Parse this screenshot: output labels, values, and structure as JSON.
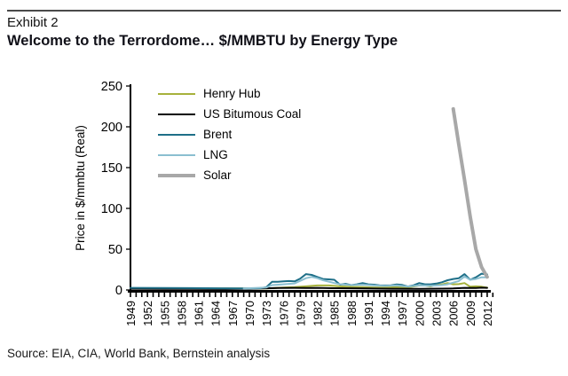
{
  "header": {
    "exhibit_label": "Exhibit 2",
    "title": "Welcome to the Terrordome… $/MMBTU by Energy Type"
  },
  "source_note": "Source: EIA, CIA, World Bank, Bernstein analysis",
  "colors": {
    "henry_hub": "#a7b23c",
    "us_bitumous_coal": "#000000",
    "brent": "#1e6f88",
    "lng": "#8bbfd0",
    "solar": "#a8a8a8",
    "axis": "#000000",
    "rule": "#4a4a4a"
  },
  "chart_data": {
    "type": "line",
    "title": "",
    "xlabel": "",
    "ylabel": "Price in $/mmbtu (Real)",
    "ylim": [
      0,
      250
    ],
    "yticks": [
      0,
      50,
      100,
      150,
      200,
      250
    ],
    "xlim": [
      1949,
      2013
    ],
    "xtick_labels": [
      "1949",
      "1952",
      "1955",
      "1958",
      "1961",
      "1964",
      "1967",
      "1970",
      "1973",
      "1976",
      "1979",
      "1982",
      "1985",
      "1988",
      "1991",
      "1994",
      "1997",
      "2000",
      "2003",
      "2006",
      "2009",
      "2012"
    ],
    "minor_xtick_every_years": 1,
    "grid": false,
    "legend_position": "top-left-inside",
    "legend_order": [
      "Henry Hub",
      "US Bitumous Coal",
      "Brent",
      "LNG",
      "Solar"
    ],
    "series": [
      {
        "name": "Henry Hub",
        "color": "#a7b23c",
        "width": 2,
        "points": [
          [
            1949,
            1.8
          ],
          [
            1955,
            1.9
          ],
          [
            1960,
            1.9
          ],
          [
            1965,
            1.8
          ],
          [
            1970,
            1.8
          ],
          [
            1973,
            2.0
          ],
          [
            1974,
            2.2
          ],
          [
            1976,
            3.0
          ],
          [
            1978,
            3.5
          ],
          [
            1980,
            4.5
          ],
          [
            1982,
            5.5
          ],
          [
            1984,
            5.5
          ],
          [
            1986,
            4.5
          ],
          [
            1988,
            3.8
          ],
          [
            1990,
            3.5
          ],
          [
            1992,
            3.0
          ],
          [
            1994,
            2.8
          ],
          [
            1996,
            3.5
          ],
          [
            1998,
            3.0
          ],
          [
            2000,
            5.5
          ],
          [
            2001,
            5.5
          ],
          [
            2002,
            4.5
          ],
          [
            2003,
            6.5
          ],
          [
            2004,
            6.8
          ],
          [
            2005,
            8.5
          ],
          [
            2006,
            7.0
          ],
          [
            2007,
            7.2
          ],
          [
            2008,
            8.5
          ],
          [
            2009,
            4.0
          ],
          [
            2010,
            4.5
          ],
          [
            2011,
            4.0
          ],
          [
            2012,
            2.8
          ]
        ]
      },
      {
        "name": "US Bitumous Coal",
        "color": "#000000",
        "width": 2,
        "points": [
          [
            1949,
            1.5
          ],
          [
            1955,
            1.4
          ],
          [
            1960,
            1.3
          ],
          [
            1965,
            1.2
          ],
          [
            1970,
            1.5
          ],
          [
            1975,
            2.5
          ],
          [
            1978,
            2.6
          ],
          [
            1980,
            2.5
          ],
          [
            1982,
            2.6
          ],
          [
            1985,
            2.2
          ],
          [
            1990,
            1.8
          ],
          [
            1995,
            1.5
          ],
          [
            2000,
            1.4
          ],
          [
            2004,
            1.6
          ],
          [
            2006,
            1.8
          ],
          [
            2008,
            2.6
          ],
          [
            2010,
            2.5
          ],
          [
            2011,
            2.8
          ],
          [
            2012,
            2.6
          ]
        ]
      },
      {
        "name": "Brent",
        "color": "#1e6f88",
        "width": 2,
        "points": [
          [
            1949,
            2.6
          ],
          [
            1955,
            2.4
          ],
          [
            1960,
            2.3
          ],
          [
            1965,
            2.1
          ],
          [
            1970,
            2.0
          ],
          [
            1972,
            2.2
          ],
          [
            1973,
            3.5
          ],
          [
            1974,
            10.0
          ],
          [
            1975,
            10.0
          ],
          [
            1976,
            10.5
          ],
          [
            1977,
            11.0
          ],
          [
            1978,
            10.5
          ],
          [
            1979,
            14.0
          ],
          [
            1980,
            19.5
          ],
          [
            1981,
            18.5
          ],
          [
            1982,
            16.0
          ],
          [
            1983,
            13.5
          ],
          [
            1984,
            13.0
          ],
          [
            1985,
            12.5
          ],
          [
            1986,
            6.5
          ],
          [
            1987,
            7.5
          ],
          [
            1988,
            6.0
          ],
          [
            1989,
            7.0
          ],
          [
            1990,
            8.5
          ],
          [
            1991,
            7.0
          ],
          [
            1992,
            6.5
          ],
          [
            1993,
            5.8
          ],
          [
            1994,
            5.5
          ],
          [
            1995,
            5.8
          ],
          [
            1996,
            6.8
          ],
          [
            1997,
            6.2
          ],
          [
            1998,
            4.2
          ],
          [
            1999,
            5.8
          ],
          [
            2000,
            8.5
          ],
          [
            2001,
            7.0
          ],
          [
            2002,
            7.0
          ],
          [
            2003,
            7.8
          ],
          [
            2004,
            9.5
          ],
          [
            2005,
            12.0
          ],
          [
            2006,
            13.5
          ],
          [
            2007,
            14.5
          ],
          [
            2008,
            19.5
          ],
          [
            2009,
            12.5
          ],
          [
            2010,
            15.5
          ],
          [
            2011,
            20.0
          ],
          [
            2012,
            19.0
          ]
        ]
      },
      {
        "name": "LNG",
        "color": "#8bbfd0",
        "width": 2,
        "points": [
          [
            1969,
            1.8
          ],
          [
            1973,
            3.0
          ],
          [
            1974,
            6.0
          ],
          [
            1976,
            7.0
          ],
          [
            1978,
            8.0
          ],
          [
            1980,
            14.5
          ],
          [
            1981,
            16.0
          ],
          [
            1982,
            14.5
          ],
          [
            1983,
            12.0
          ],
          [
            1985,
            8.5
          ],
          [
            1986,
            7.0
          ],
          [
            1988,
            6.0
          ],
          [
            1990,
            6.5
          ],
          [
            1992,
            5.5
          ],
          [
            1994,
            5.0
          ],
          [
            1996,
            5.5
          ],
          [
            1998,
            4.2
          ],
          [
            2000,
            5.8
          ],
          [
            2002,
            5.2
          ],
          [
            2003,
            5.5
          ],
          [
            2004,
            6.0
          ],
          [
            2005,
            7.0
          ],
          [
            2006,
            9.0
          ],
          [
            2007,
            11.0
          ],
          [
            2008,
            16.5
          ],
          [
            2009,
            12.5
          ],
          [
            2010,
            13.5
          ],
          [
            2011,
            15.5
          ],
          [
            2012,
            15.5
          ]
        ]
      },
      {
        "name": "Solar",
        "color": "#a8a8a8",
        "width": 4,
        "points": [
          [
            2006,
            222
          ],
          [
            2007,
            178
          ],
          [
            2008,
            135
          ],
          [
            2009,
            90
          ],
          [
            2010,
            50
          ],
          [
            2011,
            28
          ],
          [
            2012,
            16
          ]
        ]
      }
    ]
  }
}
